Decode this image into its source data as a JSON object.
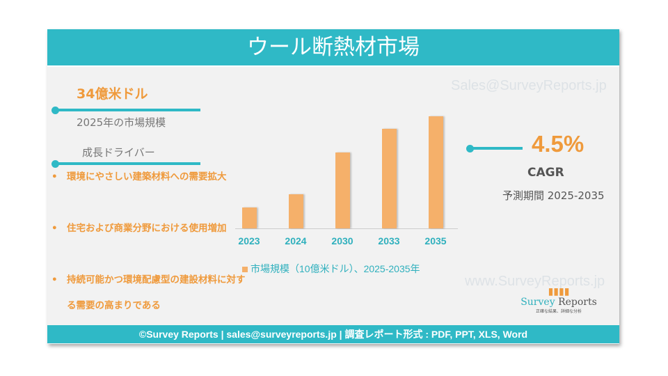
{
  "title": "ウール断熱材市場",
  "watermark_top": "Sales@SurveyReports.jp",
  "watermark_bottom": "www.SurveyReports.jp",
  "market_size": {
    "value": "34億米ドル",
    "label": "2025年の市場規模"
  },
  "drivers": {
    "heading": "成長ドライバー",
    "items": [
      "環境にやさしい建築材料への需要拡大",
      "住宅および商業分野における使用増加",
      "持続可能かつ環境配慮型の建設材料に対する需要の高まりである"
    ]
  },
  "cagr": {
    "value": "4.5%",
    "label": "CAGR",
    "period": "予測期間 2025-2035"
  },
  "chart_data": {
    "type": "bar",
    "categories": [
      "2023",
      "2024",
      "2030",
      "2033",
      "2035"
    ],
    "values": [
      1.0,
      1.6,
      3.6,
      4.7,
      5.3
    ],
    "legend": "市場規模（10億米ドル）、2025-2035年",
    "color": "#f5b06a"
  },
  "logo": {
    "name1": "Survey",
    "name2": "Reports",
    "tagline": "正確な結果、詳細な分析"
  },
  "footer": "©Survey Reports | sales@surveyreports.jp |  調査レポート形式 : PDF, PPT, XLS, Word"
}
